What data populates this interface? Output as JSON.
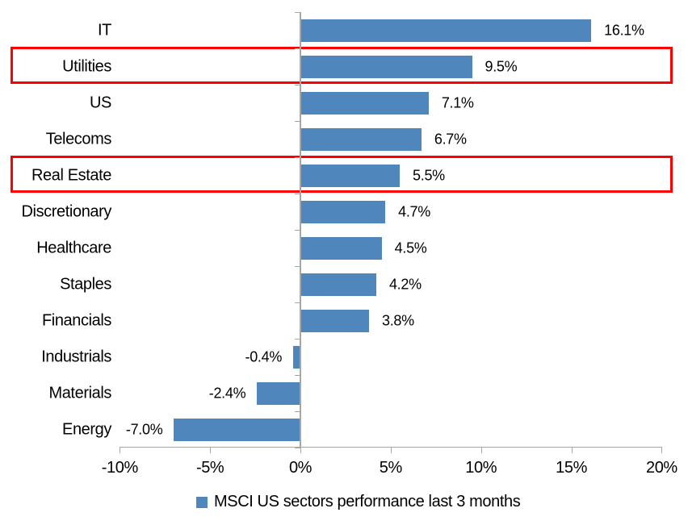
{
  "chart_data": {
    "type": "bar",
    "orientation": "horizontal",
    "title": "",
    "categories": [
      "IT",
      "Utilities",
      "US",
      "Telecoms",
      "Real Estate",
      "Discretionary",
      "Healthcare",
      "Staples",
      "Financials",
      "Industrials",
      "Materials",
      "Energy"
    ],
    "values": [
      16.1,
      9.5,
      7.1,
      6.7,
      5.5,
      4.7,
      4.5,
      4.2,
      3.8,
      -0.4,
      -2.4,
      -7.0
    ],
    "value_labels": [
      "16.1%",
      "9.5%",
      "7.1%",
      "6.7%",
      "5.5%",
      "4.7%",
      "4.5%",
      "4.2%",
      "3.8%",
      "-0.4%",
      "-2.4%",
      "-7.0%"
    ],
    "highlighted_categories": [
      "Utilities",
      "Real Estate"
    ],
    "xlim": [
      -10,
      20
    ],
    "x_ticks": [
      -10,
      -5,
      0,
      5,
      10,
      15,
      20
    ],
    "x_tick_labels": [
      "-10%",
      "-5%",
      "0%",
      "5%",
      "10%",
      "15%",
      "20%"
    ],
    "grid": false,
    "legend": "MSCI US sectors performance last 3 months",
    "legend_position": "bottom-center",
    "bar_color": "#4F86BC",
    "highlight_color": "#FF0000",
    "axis_color": "#A6A6A6",
    "text_color": "#000000"
  }
}
